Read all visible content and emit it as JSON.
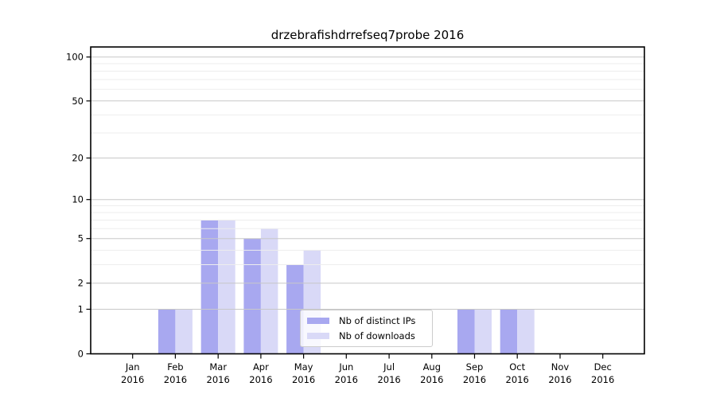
{
  "page": {
    "background_color": "#ffffff"
  },
  "chart_data": {
    "type": "bar",
    "title": "drzebrafishdrrefseq7probe 2016",
    "categories": [
      "Jan",
      "Feb",
      "Mar",
      "Apr",
      "May",
      "Jun",
      "Jul",
      "Aug",
      "Sep",
      "Oct",
      "Nov",
      "Dec"
    ],
    "year_label": "2016",
    "series": [
      {
        "name": "Nb of distinct IPs",
        "color": "#a8a8f0",
        "values": [
          0,
          1,
          7,
          5,
          3,
          0,
          0,
          0,
          1,
          1,
          0,
          0
        ]
      },
      {
        "name": "Nb of downloads",
        "color": "#d9d9f7",
        "values": [
          0,
          1,
          7,
          6,
          4,
          0,
          0,
          0,
          1,
          1,
          0,
          0
        ]
      }
    ],
    "xlabel": "",
    "ylabel": "",
    "yscale": "log1p",
    "ylim": [
      0,
      117
    ],
    "y_ticks": [
      0,
      1,
      2,
      5,
      10,
      20,
      50,
      100
    ],
    "y_minor_ticks": [
      3,
      4,
      6,
      7,
      8,
      9,
      30,
      40,
      60,
      70,
      80,
      90
    ],
    "grid": {
      "on": true,
      "major_color": "#c8c8c8",
      "minor_color": "#ededed",
      "drawn_over_bars": true
    },
    "legend": {
      "position": "lower-center",
      "entries": [
        "Nb of distinct IPs",
        "Nb of downloads"
      ]
    },
    "axis_color": "#000000",
    "text_color": "#000000"
  }
}
